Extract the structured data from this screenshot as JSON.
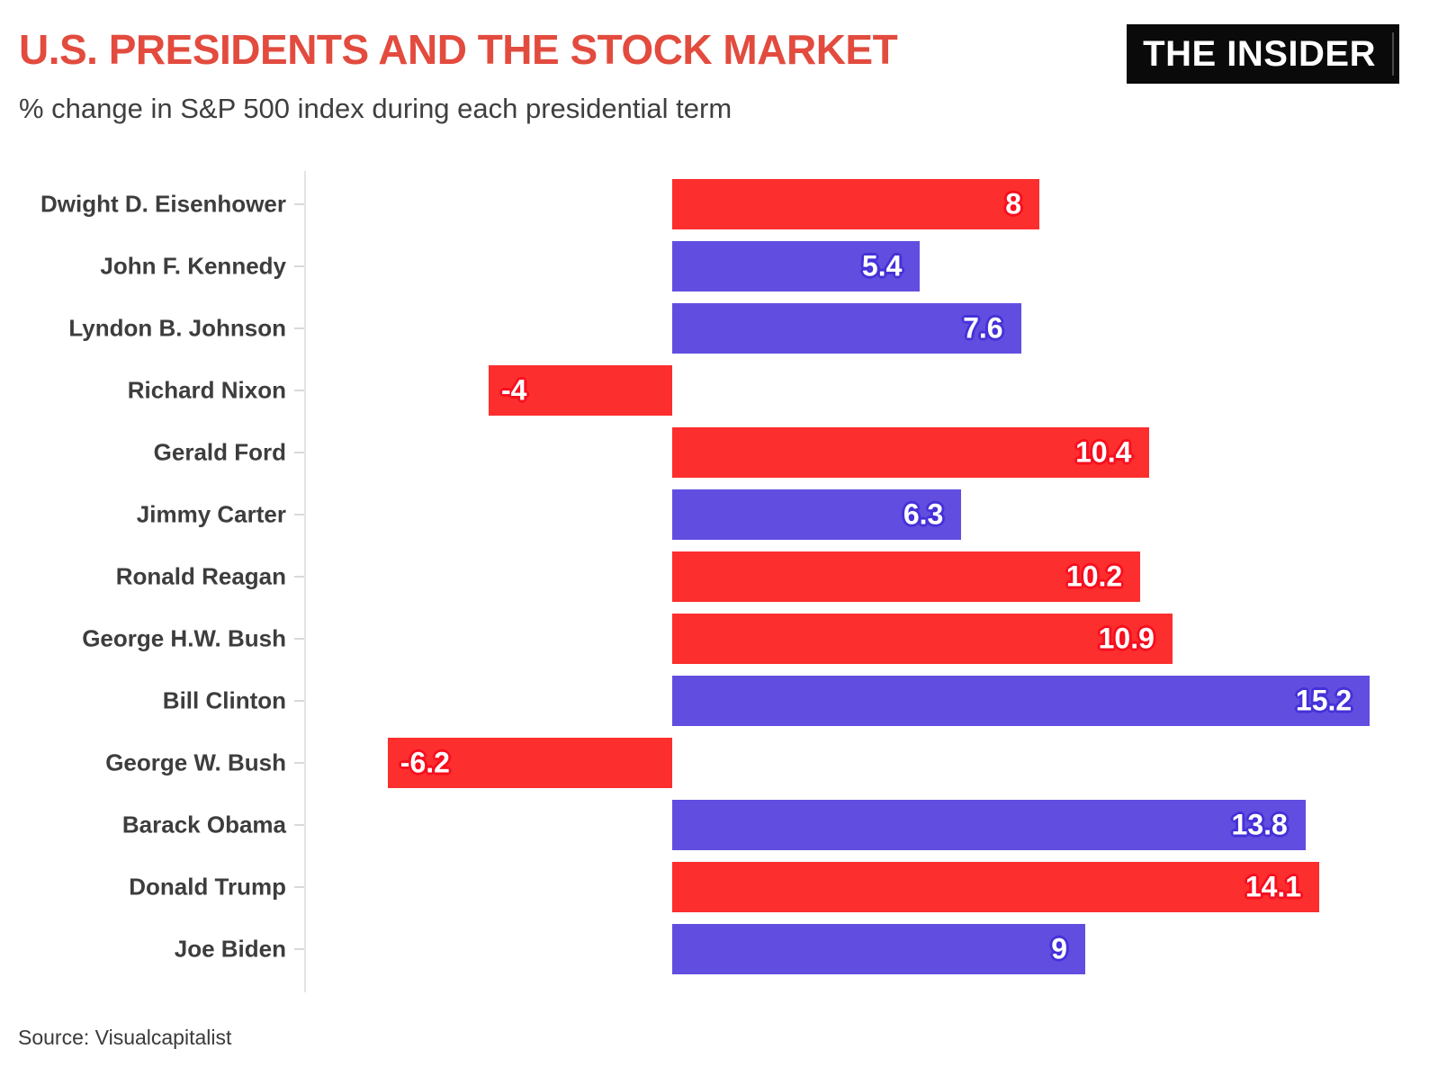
{
  "header": {
    "title": "U.S. PRESIDENTS AND THE STOCK MARKET",
    "subtitle": "% change in S&P 500 index during each presidential term",
    "logo_text": "THE INSIDER"
  },
  "footer": {
    "source": "Source: Visualcapitalist"
  },
  "palette": {
    "republican_bar": "#fc2e2e",
    "democrat_bar": "#614ee0",
    "republican_label_glow": "#f60f1f",
    "democrat_label_glow": "#4531d8",
    "title_accent": "#e24b3e",
    "logo_background": "#0a0a0a",
    "logo_text_color": "#ffffff",
    "category_label_color": "#3d3d3d",
    "axis_color": "#e3e3e3"
  },
  "chart_data": {
    "type": "bar",
    "orientation": "horizontal",
    "title": "U.S. PRESIDENTS AND THE STOCK MARKET",
    "subtitle": "% change in S&P 500 index during each presidential term",
    "xlabel": "",
    "ylabel": "",
    "xlim": [
      -8,
      16.5
    ],
    "grid": false,
    "legend": "none",
    "categories": [
      "Dwight D. Eisenhower",
      "John F. Kennedy",
      "Lyndon B. Johnson",
      "Richard Nixon",
      "Gerald Ford",
      "Jimmy Carter",
      "Ronald Reagan",
      "George H.W. Bush",
      "Bill Clinton",
      "George W. Bush",
      "Barack Obama",
      "Donald Trump",
      "Joe Biden"
    ],
    "values": [
      8,
      5.4,
      7.6,
      -4,
      10.4,
      6.3,
      10.2,
      10.9,
      15.2,
      -6.2,
      13.8,
      14.1,
      9
    ],
    "value_labels": [
      "8",
      "5.4",
      "7.6",
      "-4",
      "10.4",
      "6.3",
      "10.2",
      "10.9",
      "15.2",
      "-6.2",
      "13.8",
      "14.1",
      "9"
    ],
    "parties": [
      "R",
      "D",
      "D",
      "R",
      "R",
      "D",
      "R",
      "R",
      "D",
      "R",
      "D",
      "R",
      "D"
    ],
    "color_coding": "R = red bar, D = blue-purple bar"
  }
}
